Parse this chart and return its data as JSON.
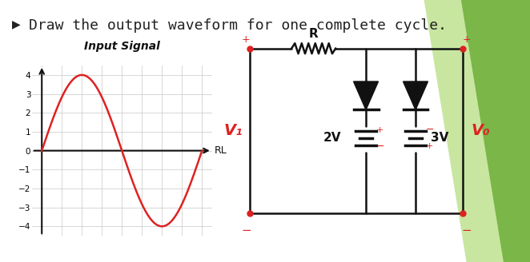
{
  "title": "Draw the output waveform for one complete cycle.",
  "title_fontsize": 13,
  "title_color": "#222222",
  "bg_color": "#ffffff",
  "green_stripe_color": "#7ab648",
  "light_green_color": "#c8e6a0",
  "input_signal_label": "Input Signal",
  "rl_label": "RL",
  "vi_label": "V₁",
  "vo_label": "V₀",
  "r_label": "R",
  "v2_label": "2V",
  "v3_label": "3V",
  "sine_amplitude": 4,
  "sine_color": "#dd2222",
  "grid_color": "#c8c8c8",
  "axis_color": "#111111",
  "circuit_color": "#111111",
  "red_color": "#dd2222",
  "ylim": [
    -4.5,
    4.5
  ],
  "yticks": [
    -4,
    -3,
    -2,
    -1,
    0,
    1,
    2,
    3,
    4
  ]
}
